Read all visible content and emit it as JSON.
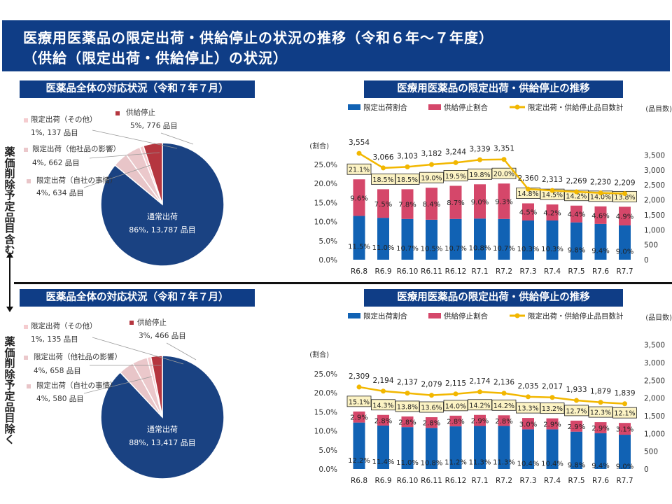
{
  "header": {
    "line1": "医療用医薬品の限定出荷・供給停止の状況の推移（令和６年～７年度）",
    "line2": "（供給（限定出荷・供給停止）の状況）"
  },
  "side": {
    "top": "薬価削除予定品目含む",
    "bottom": "薬価削除予定品目除く"
  },
  "colors": {
    "header": "#0f3d86",
    "normal": "#1a4282",
    "limited_other": "#f5cccf",
    "limited_other_company": "#ebc8cb",
    "limited_own": "#e8c5c8",
    "supply_stop": "#b5363f",
    "bar_limited": "#1162b4",
    "bar_stop": "#d5476a",
    "line": "#f2b700",
    "label_box": "#fcf3c4"
  },
  "pies": [
    {
      "title": "医薬品全体の対応状況（令和７年７月）",
      "slices": [
        {
          "name": "通常出荷",
          "pct": 86,
          "label": "86%, 13,787 品目",
          "color": "#1a4282"
        },
        {
          "name": "限定出荷（自社の事情）",
          "pct": 4,
          "label": "4%, 634 品目",
          "color": "#e8c5c8"
        },
        {
          "name": "限定出荷（他社品の影響）",
          "pct": 4,
          "label": "4%, 662 品目",
          "color": "#ebc8cb"
        },
        {
          "name": "限定出荷（その他）",
          "pct": 1,
          "label": "1%, 137 品目",
          "color": "#f5cccf"
        },
        {
          "name": "供給停止",
          "pct": 5,
          "label": "5%, 776 品目",
          "color": "#b5363f"
        }
      ]
    },
    {
      "title": "医薬品全体の対応状況（令和７年７月）",
      "slices": [
        {
          "name": "通常出荷",
          "pct": 88,
          "label": "88%, 13,417 品目",
          "color": "#1a4282"
        },
        {
          "name": "限定出荷（自社の事情）",
          "pct": 4,
          "label": "4%, 580 品目",
          "color": "#e8c5c8"
        },
        {
          "name": "限定出荷（他社品の影響）",
          "pct": 4,
          "label": "4%, 658 品目",
          "color": "#ebc8cb"
        },
        {
          "name": "限定出荷（その他）",
          "pct": 1,
          "label": "1%, 135 品目",
          "color": "#f5cccf"
        },
        {
          "name": "供給停止",
          "pct": 3,
          "label": "3%, 466 品目",
          "color": "#b5363f"
        }
      ]
    }
  ],
  "chart_data": [
    {
      "type": "bar",
      "title": "医療用医薬品の限定出荷・供給停止の推移",
      "categories": [
        "R6.8",
        "R6.9",
        "R6.10",
        "R6.11",
        "R6.12",
        "R7.1",
        "R7.2",
        "R7.3",
        "R7.4",
        "R7.5",
        "R7.6",
        "R7.7"
      ],
      "series": [
        {
          "name": "限定出荷割合",
          "kind": "bar",
          "values": [
            11.5,
            11.0,
            10.7,
            10.5,
            10.7,
            10.8,
            10.7,
            10.3,
            10.3,
            9.8,
            9.4,
            9.0
          ]
        },
        {
          "name": "供給停止割合",
          "kind": "bar",
          "values": [
            9.6,
            7.5,
            7.8,
            8.4,
            8.7,
            9.0,
            9.3,
            4.5,
            4.2,
            4.4,
            4.6,
            4.9
          ]
        },
        {
          "name": "限定出荷・供給停止品目数計",
          "kind": "line",
          "axis": "right",
          "values": [
            3554,
            3066,
            3103,
            3182,
            3244,
            3339,
            3351,
            2360,
            2313,
            2269,
            2230,
            2209
          ]
        }
      ],
      "totals": [
        "21.1%",
        "18.5%",
        "18.5%",
        "19.0%",
        "19.5%",
        "19.8%",
        "20.0%",
        "14.8%",
        "14.5%",
        "14.2%",
        "14.0%",
        "13.8%"
      ],
      "ylabel": "(割合)",
      "y2label": "(品目数)",
      "yticks": [
        "0.0%",
        "5.0%",
        "10.0%",
        "15.0%",
        "20.0%",
        "25.0%"
      ],
      "y2ticks": [
        "0",
        "500",
        "1,000",
        "1,500",
        "2,000",
        "2,500",
        "3,000",
        "3,500"
      ],
      "ylim": [
        0,
        25
      ],
      "y2lim": [
        0,
        3500
      ],
      "legend": "top",
      "grid": false
    },
    {
      "type": "bar",
      "title": "医療用医薬品の限定出荷・供給停止の推移",
      "categories": [
        "R6.8",
        "R6.9",
        "R6.10",
        "R6.11",
        "R6.12",
        "R7.1",
        "R7.2",
        "R7.3",
        "R7.4",
        "R7.5",
        "R7.6",
        "R7.7"
      ],
      "series": [
        {
          "name": "限定出荷割合",
          "kind": "bar",
          "values": [
            12.2,
            11.4,
            11.0,
            10.8,
            11.2,
            11.3,
            11.3,
            10.4,
            10.4,
            9.8,
            9.4,
            9.0
          ]
        },
        {
          "name": "供給停止割合",
          "kind": "bar",
          "values": [
            2.9,
            2.8,
            2.8,
            2.8,
            2.8,
            2.9,
            2.8,
            3.0,
            2.9,
            2.9,
            2.9,
            3.1
          ]
        },
        {
          "name": "限定出荷・供給停止品目数計",
          "kind": "line",
          "axis": "right",
          "values": [
            2309,
            2194,
            2137,
            2079,
            2115,
            2174,
            2136,
            2035,
            2017,
            1933,
            1879,
            1839
          ]
        }
      ],
      "totals": [
        "15.1%",
        "14.3%",
        "13.8%",
        "13.6%",
        "14.0%",
        "14.2%",
        "14.2%",
        "13.3%",
        "13.2%",
        "12.7%",
        "12.3%",
        "12.1%"
      ],
      "ylabel": "(割合)",
      "y2label": "(品目数)",
      "yticks": [
        "0.0%",
        "5.0%",
        "10.0%",
        "15.0%",
        "20.0%",
        "25.0%"
      ],
      "y2ticks": [
        "0",
        "500",
        "1,000",
        "1,500",
        "2,000",
        "2,500",
        "3,000",
        "3,500"
      ],
      "ylim": [
        0,
        25
      ],
      "y2lim": [
        0,
        3500
      ],
      "legend": "top",
      "grid": false
    }
  ]
}
